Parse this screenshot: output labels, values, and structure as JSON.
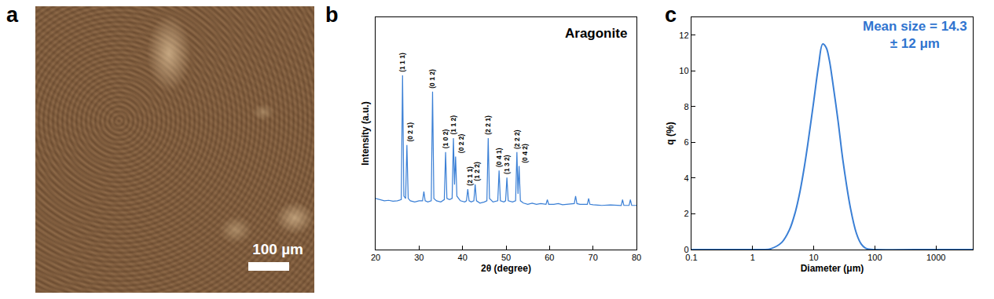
{
  "image_panel": {
    "panel": "a",
    "scale_bar": "100 µm"
  },
  "chart_data": [
    {
      "panel": "b",
      "type": "line",
      "x_label": "2θ (degree)",
      "y_label": "Intensity (a.u.)",
      "x": [
        20,
        21,
        22,
        23,
        24,
        25,
        25.9,
        26.2,
        26.5,
        26.9,
        27.2,
        27.5,
        28,
        29,
        30,
        30.8,
        31.1,
        31.4,
        32,
        32.8,
        33.1,
        33.4,
        34,
        35,
        35.8,
        36.1,
        36.4,
        37,
        37.6,
        37.9,
        38.15,
        38.4,
        38.7,
        39.5,
        40.5,
        40.9,
        41.2,
        41.5,
        42,
        42.6,
        42.9,
        43.2,
        44,
        45,
        45.6,
        45.9,
        46.2,
        47,
        48.1,
        48.4,
        48.7,
        49.5,
        49.9,
        50.2,
        50.5,
        51.5,
        52.2,
        52.5,
        52.75,
        53,
        53.3,
        54,
        55,
        56,
        57,
        58,
        59.2,
        59.5,
        59.8,
        61,
        62,
        63,
        64,
        65,
        65.7,
        66,
        66.3,
        67,
        68.7,
        69,
        69.3,
        70,
        72,
        74,
        76.5,
        76.8,
        77.1,
        78.3,
        78.6,
        78.9,
        80
      ],
      "series": [
        {
          "name": "Aragonite",
          "color": "#3a7fd5",
          "values": [
            22,
            21.5,
            21,
            21.2,
            20.8,
            21,
            21.5,
            75,
            23,
            22,
            45,
            22,
            21,
            20.5,
            21,
            21,
            25,
            21,
            20.5,
            21,
            68,
            22,
            21,
            20.5,
            21.5,
            42,
            22,
            21.5,
            22,
            48,
            28,
            40,
            23,
            21,
            20.5,
            21,
            26,
            21,
            20.5,
            21,
            28,
            21,
            20,
            20.5,
            21,
            48,
            22,
            20.5,
            21,
            34,
            21,
            20.5,
            21,
            31,
            21,
            20.5,
            21,
            42,
            24,
            36,
            21,
            20,
            19.5,
            20,
            19.5,
            19.8,
            19.5,
            21.5,
            19.5,
            19.5,
            19.8,
            19.3,
            19.5,
            19.5,
            19.8,
            23,
            19.8,
            19.5,
            19.5,
            22,
            19.5,
            19.3,
            19,
            19.2,
            19,
            21.5,
            19,
            19,
            21.5,
            19,
            19
          ]
        }
      ],
      "annotations": [
        {
          "text": "(1 1 1)",
          "x": 26.2,
          "y": 75
        },
        {
          "text": "(0 2 1)",
          "x": 27.2,
          "y": 45
        },
        {
          "text": "(0 1 2)",
          "x": 33.1,
          "y": 68
        },
        {
          "text": "(1 0 2)",
          "x": 36.1,
          "y": 42
        },
        {
          "text": "(1 1 2)",
          "x": 37.9,
          "y": 48
        },
        {
          "text": "(0 2 2)",
          "x": 38.4,
          "y": 40
        },
        {
          "text": "(2 1 1)",
          "x": 41.2,
          "y": 26
        },
        {
          "text": "(1 2 2)",
          "x": 42.9,
          "y": 28
        },
        {
          "text": "(2 2 1)",
          "x": 45.9,
          "y": 48
        },
        {
          "text": "(0 4 1)",
          "x": 48.4,
          "y": 34
        },
        {
          "text": "(1 3 2)",
          "x": 50.2,
          "y": 31
        },
        {
          "text": "(2 2 2)",
          "x": 52.5,
          "y": 42
        },
        {
          "text": "(0 4 2)",
          "x": 53,
          "y": 36
        }
      ],
      "xlim": [
        20,
        80
      ],
      "xticks": [
        20,
        30,
        40,
        50,
        60,
        70,
        80
      ],
      "ylim": [
        0,
        100
      ],
      "yticks": [],
      "tick_labels": "x",
      "grid": false
    },
    {
      "panel": "c",
      "type": "line",
      "x_label": "Diameter (μm)",
      "y_label": "q (%)",
      "x": [
        0.1,
        0.5,
        1,
        1.5,
        2,
        3,
        4,
        5,
        6,
        7,
        8,
        10,
        12,
        14,
        16,
        18,
        20,
        25,
        30,
        40,
        50,
        60,
        70,
        80,
        100,
        1000,
        4000
      ],
      "values": [
        0,
        0,
        0,
        0,
        0.05,
        0.4,
        1.1,
        2.1,
        3.3,
        4.6,
        5.9,
        8.3,
        10.3,
        11.5,
        11.3,
        10.6,
        9.6,
        7.2,
        5,
        2.3,
        0.9,
        0.3,
        0.08,
        0.02,
        0,
        0,
        0
      ],
      "color": "#3a7fd5",
      "annotations": [
        {
          "lines": [
            "Mean size = 14.3",
            "± 12 μm"
          ],
          "color": "#2f74cf"
        }
      ],
      "log": "x",
      "xlim": [
        0.1,
        4000
      ],
      "xticks": [
        0.1,
        1,
        10,
        100,
        1000
      ],
      "ylim": [
        0,
        13
      ],
      "yticks": [
        0,
        2,
        4,
        6,
        8,
        10,
        12
      ],
      "grid": false
    }
  ]
}
